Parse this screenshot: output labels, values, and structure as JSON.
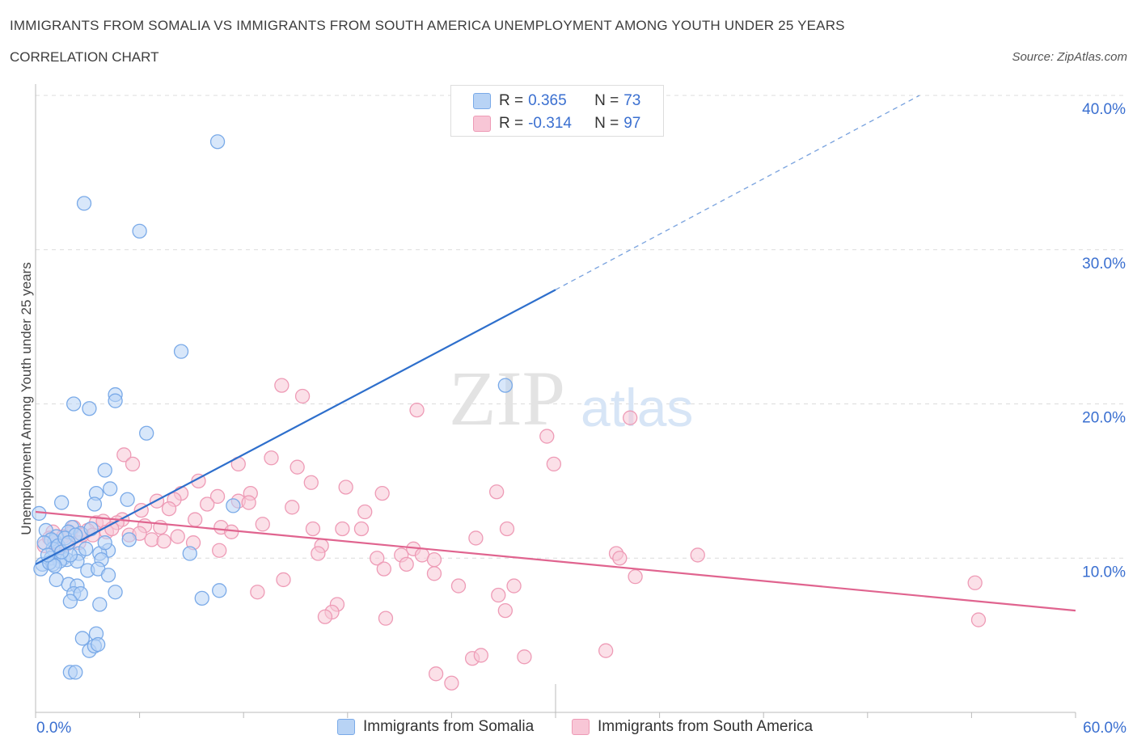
{
  "header": {
    "title": "IMMIGRANTS FROM SOMALIA VS IMMIGRANTS FROM SOUTH AMERICA UNEMPLOYMENT AMONG YOUTH UNDER 25 YEARS",
    "subtitle": "CORRELATION CHART",
    "source": "Source: ZipAtlas.com"
  },
  "watermark": {
    "zip": "ZIP",
    "atlas": "atlas"
  },
  "legend_top": {
    "r_label": "R =",
    "n_label": "N =",
    "rows": [
      {
        "r": "0.365",
        "n": "73"
      },
      {
        "r": "-0.314",
        "n": "97"
      }
    ]
  },
  "legend_bottom": {
    "items": [
      "Immigrants from Somalia",
      "Immigrants from South America"
    ]
  },
  "axis_labels": {
    "x_min": "0.0%",
    "x_max": "60.0%"
  },
  "colors": {
    "blue_fill": "#b8d3f5",
    "blue_stroke": "#7aaae8",
    "blue_line": "#2e6fcc",
    "pink_fill": "#f8c6d6",
    "pink_stroke": "#ee9bb6",
    "pink_line": "#e0648f",
    "grid": "#dcdcdc",
    "tick_text": "#3a6fd0"
  },
  "chart_data": {
    "type": "scatter",
    "title": "IMMIGRANTS FROM SOMALIA VS IMMIGRANTS FROM SOUTH AMERICA UNEMPLOYMENT AMONG YOUTH UNDER 25 YEARS",
    "xlabel": "",
    "ylabel": "Unemployment Among Youth under 25 years",
    "xlim": [
      0,
      60
    ],
    "ylim": [
      0,
      40
    ],
    "x_tick_labels": [
      "0.0%",
      "60.0%"
    ],
    "y_ticks": [
      10,
      20,
      30,
      40
    ],
    "y_tick_labels": [
      "10.0%",
      "20.0%",
      "30.0%",
      "40.0%"
    ],
    "grid": true,
    "series": [
      {
        "name": "Immigrants from Somalia",
        "r": 0.365,
        "n": 73,
        "trend": {
          "x0": 0,
          "y0": 9.6,
          "x1": 30,
          "y1": 27.4,
          "dashed_to_x": 51,
          "dashed_to_y": 40
        },
        "points": [
          [
            10.5,
            37.0
          ],
          [
            2.8,
            33.0
          ],
          [
            6.0,
            31.2
          ],
          [
            8.4,
            23.4
          ],
          [
            27.1,
            21.2
          ],
          [
            4.6,
            20.6
          ],
          [
            4.6,
            20.2
          ],
          [
            2.2,
            20.0
          ],
          [
            3.1,
            19.7
          ],
          [
            6.4,
            18.1
          ],
          [
            4.0,
            15.7
          ],
          [
            4.3,
            14.5
          ],
          [
            3.5,
            14.2
          ],
          [
            5.3,
            13.8
          ],
          [
            1.5,
            13.6
          ],
          [
            3.4,
            13.5
          ],
          [
            11.4,
            13.4
          ],
          [
            0.2,
            12.9
          ],
          [
            2.1,
            12.0
          ],
          [
            1.9,
            11.7
          ],
          [
            2.6,
            11.6
          ],
          [
            0.6,
            11.8
          ],
          [
            1.1,
            11.1
          ],
          [
            1.2,
            11.4
          ],
          [
            0.9,
            11.2
          ],
          [
            5.4,
            11.2
          ],
          [
            1.0,
            10.6
          ],
          [
            2.5,
            10.3
          ],
          [
            4.2,
            10.5
          ],
          [
            3.7,
            10.3
          ],
          [
            8.9,
            10.3
          ],
          [
            0.9,
            10.0
          ],
          [
            1.6,
            10.0
          ],
          [
            1.8,
            9.9
          ],
          [
            2.4,
            9.8
          ],
          [
            3.8,
            9.9
          ],
          [
            1.4,
            9.8
          ],
          [
            0.4,
            9.6
          ],
          [
            0.3,
            9.3
          ],
          [
            1.0,
            9.6
          ],
          [
            0.8,
            9.7
          ],
          [
            3.0,
            9.2
          ],
          [
            3.6,
            9.3
          ],
          [
            4.2,
            8.9
          ],
          [
            1.2,
            8.6
          ],
          [
            1.9,
            8.3
          ],
          [
            2.4,
            8.2
          ],
          [
            2.2,
            7.7
          ],
          [
            2.6,
            7.7
          ],
          [
            4.6,
            7.8
          ],
          [
            9.6,
            7.4
          ],
          [
            10.6,
            7.9
          ],
          [
            2.0,
            7.2
          ],
          [
            3.7,
            7.0
          ],
          [
            2.7,
            4.8
          ],
          [
            3.5,
            5.1
          ],
          [
            3.1,
            4.0
          ],
          [
            3.4,
            4.3
          ],
          [
            3.6,
            4.4
          ],
          [
            2.0,
            2.6
          ],
          [
            2.3,
            2.6
          ],
          [
            0.5,
            11.0
          ],
          [
            1.3,
            10.8
          ],
          [
            2.9,
            10.6
          ],
          [
            4.0,
            11.0
          ],
          [
            1.7,
            11.3
          ],
          [
            1.1,
            9.5
          ],
          [
            2.0,
            10.2
          ],
          [
            3.2,
            11.9
          ],
          [
            1.5,
            10.4
          ],
          [
            2.3,
            11.5
          ],
          [
            0.7,
            10.2
          ],
          [
            1.9,
            11.0
          ]
        ]
      },
      {
        "name": "Immigrants from South America",
        "r": -0.314,
        "n": 97,
        "trend": {
          "x0": 0,
          "y0": 13.0,
          "x1": 60,
          "y1": 6.6
        },
        "points": [
          [
            14.2,
            21.2
          ],
          [
            15.4,
            20.5
          ],
          [
            22.0,
            19.6
          ],
          [
            34.3,
            19.1
          ],
          [
            29.5,
            17.9
          ],
          [
            5.1,
            16.7
          ],
          [
            5.6,
            16.1
          ],
          [
            11.7,
            16.1
          ],
          [
            13.6,
            16.5
          ],
          [
            15.1,
            15.9
          ],
          [
            29.9,
            16.1
          ],
          [
            9.4,
            15.0
          ],
          [
            15.9,
            14.9
          ],
          [
            17.9,
            14.6
          ],
          [
            8.4,
            14.2
          ],
          [
            12.4,
            14.2
          ],
          [
            20.0,
            14.2
          ],
          [
            26.6,
            14.3
          ],
          [
            10.5,
            14.0
          ],
          [
            7.0,
            13.7
          ],
          [
            8.0,
            13.8
          ],
          [
            11.7,
            13.7
          ],
          [
            12.3,
            13.6
          ],
          [
            9.9,
            13.5
          ],
          [
            14.8,
            13.3
          ],
          [
            6.1,
            13.1
          ],
          [
            7.7,
            13.2
          ],
          [
            19.0,
            13.0
          ],
          [
            9.2,
            12.5
          ],
          [
            13.1,
            12.2
          ],
          [
            5.0,
            12.5
          ],
          [
            6.3,
            12.1
          ],
          [
            7.2,
            12.0
          ],
          [
            10.7,
            12.0
          ],
          [
            16.0,
            11.9
          ],
          [
            17.7,
            11.9
          ],
          [
            18.8,
            11.9
          ],
          [
            27.2,
            11.9
          ],
          [
            2.2,
            12.0
          ],
          [
            3.5,
            12.3
          ],
          [
            3.9,
            12.4
          ],
          [
            4.7,
            12.3
          ],
          [
            2.0,
            11.6
          ],
          [
            3.0,
            11.8
          ],
          [
            4.1,
            11.7
          ],
          [
            11.3,
            11.7
          ],
          [
            5.4,
            11.5
          ],
          [
            6.7,
            11.2
          ],
          [
            8.2,
            11.4
          ],
          [
            25.4,
            11.3
          ],
          [
            9.1,
            11.0
          ],
          [
            7.4,
            11.1
          ],
          [
            1.0,
            11.7
          ],
          [
            1.6,
            11.4
          ],
          [
            2.5,
            11.0
          ],
          [
            1.3,
            10.7
          ],
          [
            0.5,
            10.8
          ],
          [
            10.6,
            10.5
          ],
          [
            16.5,
            10.8
          ],
          [
            16.3,
            10.3
          ],
          [
            19.7,
            10.0
          ],
          [
            21.1,
            10.2
          ],
          [
            21.8,
            10.6
          ],
          [
            22.3,
            10.2
          ],
          [
            23.0,
            9.9
          ],
          [
            33.5,
            10.3
          ],
          [
            33.7,
            10.0
          ],
          [
            38.2,
            10.2
          ],
          [
            21.4,
            9.6
          ],
          [
            20.1,
            9.3
          ],
          [
            23.0,
            9.0
          ],
          [
            34.6,
            8.8
          ],
          [
            14.3,
            8.6
          ],
          [
            24.4,
            8.2
          ],
          [
            27.6,
            8.2
          ],
          [
            54.2,
            8.4
          ],
          [
            12.8,
            7.8
          ],
          [
            26.7,
            7.6
          ],
          [
            17.4,
            7.0
          ],
          [
            17.1,
            6.5
          ],
          [
            16.7,
            6.2
          ],
          [
            20.2,
            6.1
          ],
          [
            27.1,
            6.6
          ],
          [
            54.4,
            6.0
          ],
          [
            25.2,
            3.5
          ],
          [
            25.7,
            3.7
          ],
          [
            28.2,
            3.6
          ],
          [
            32.9,
            4.0
          ],
          [
            23.1,
            2.5
          ],
          [
            24.0,
            1.9
          ],
          [
            2.7,
            11.5
          ],
          [
            4.4,
            11.9
          ],
          [
            1.8,
            10.9
          ],
          [
            0.8,
            11.3
          ],
          [
            3.3,
            11.5
          ],
          [
            6.0,
            11.6
          ],
          [
            1.2,
            11.0
          ]
        ]
      }
    ]
  }
}
